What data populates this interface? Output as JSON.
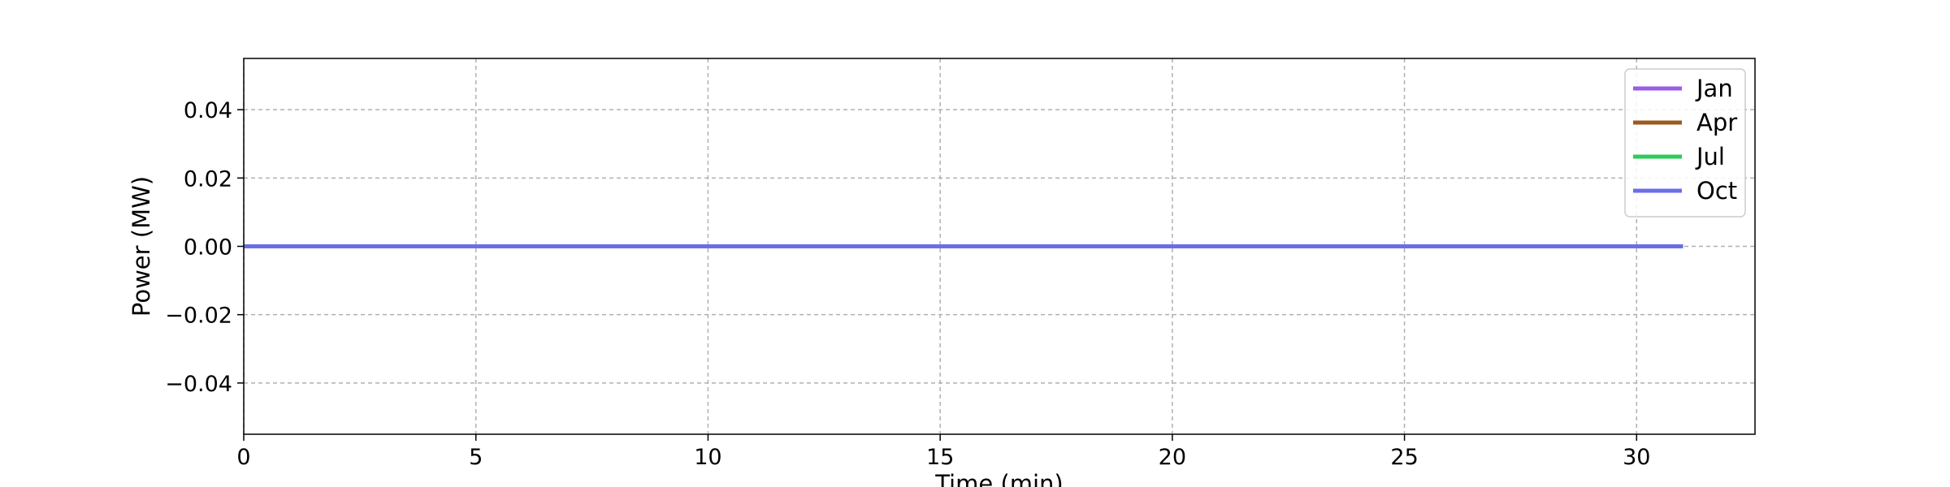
{
  "chart_data": {
    "type": "line",
    "xlabel": "Time (min)",
    "ylabel": "Power (MW)",
    "xlim": [
      0,
      32.55
    ],
    "ylim": [
      -0.055,
      0.055
    ],
    "xticks": [
      0,
      5,
      10,
      15,
      20,
      25,
      30
    ],
    "xtick_labels": [
      "0",
      "5",
      "10",
      "15",
      "20",
      "25",
      "30"
    ],
    "yticks": [
      -0.04,
      -0.02,
      0.0,
      0.02,
      0.04
    ],
    "ytick_labels": [
      "−0.04",
      "−0.02",
      "0.00",
      "0.02",
      "0.04"
    ],
    "grid": true,
    "legend_position": "top-right",
    "x": [
      0,
      31
    ],
    "series": [
      {
        "name": "Jan",
        "color": "#9b5de5",
        "values": [
          0,
          0
        ]
      },
      {
        "name": "Apr",
        "color": "#9c5b1c",
        "values": [
          0,
          0
        ]
      },
      {
        "name": "Jul",
        "color": "#2ecc5a",
        "values": [
          0,
          0
        ]
      },
      {
        "name": "Oct",
        "color": "#6a6ee8",
        "values": [
          0,
          0
        ]
      }
    ]
  }
}
